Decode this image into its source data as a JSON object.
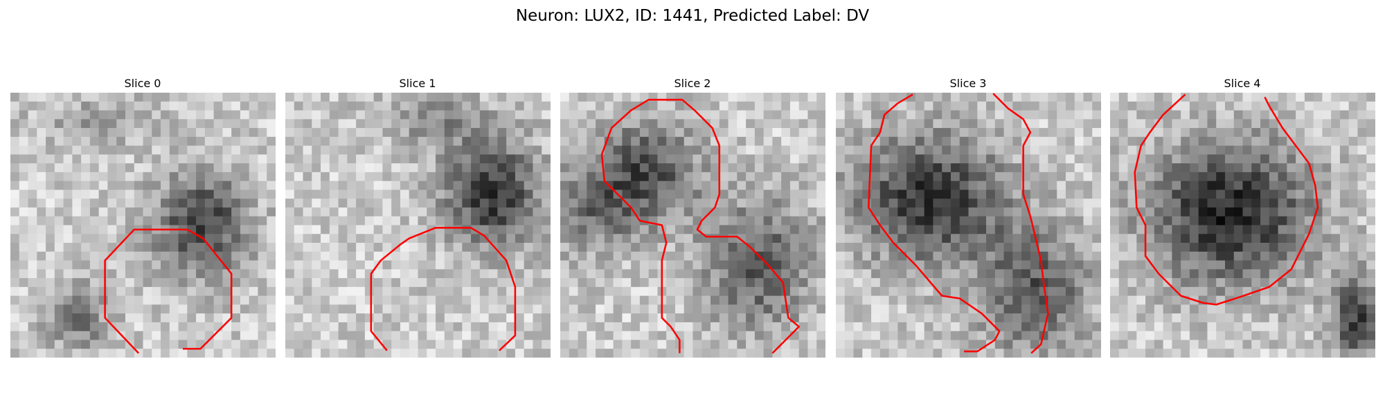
{
  "header": {
    "title": "Neuron: LUX2, ID: 1441, Predicted Label: DV"
  },
  "panels": [
    {
      "title": "Slice 0"
    },
    {
      "title": "Slice 1"
    },
    {
      "title": "Slice 2"
    },
    {
      "title": "Slice 3"
    },
    {
      "title": "Slice 4"
    }
  ]
}
